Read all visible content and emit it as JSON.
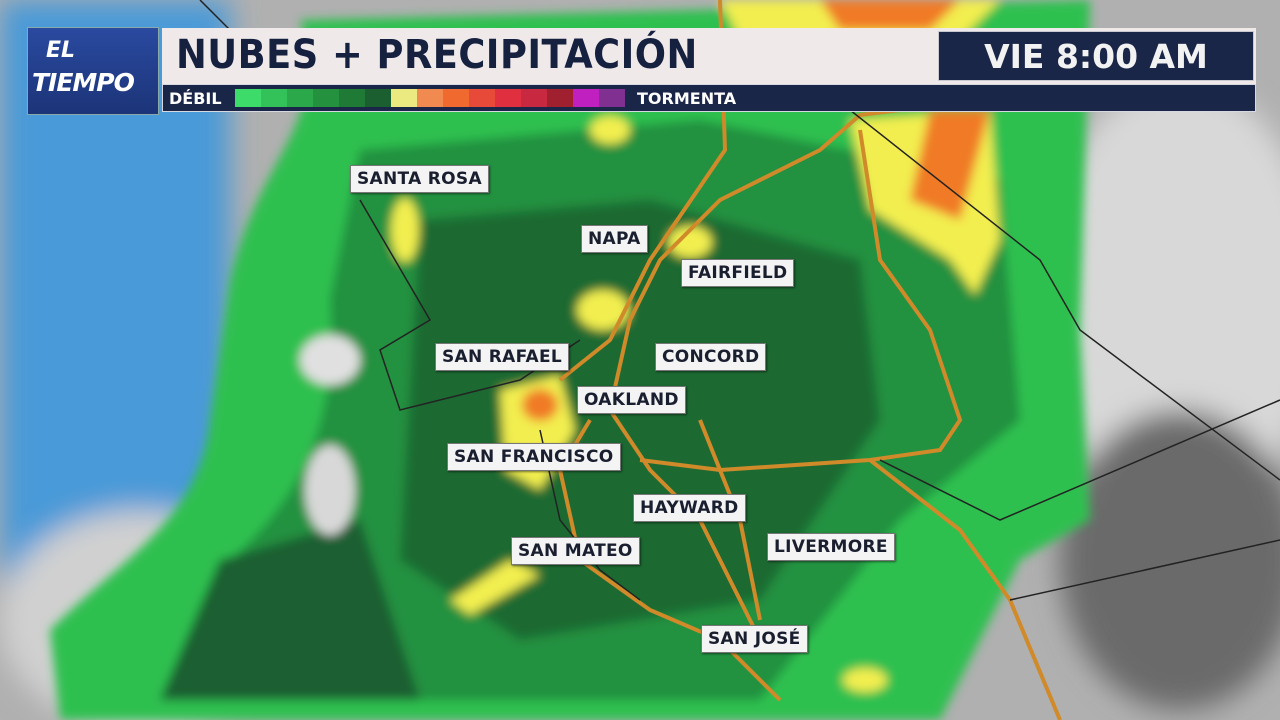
{
  "logo": {
    "line1": "EL",
    "line2": "TIEMPO"
  },
  "header": {
    "title": "NUBES + PRECIPITACIÓN",
    "time": "VIE 8:00 AM"
  },
  "legend": {
    "low_label": "DÉBIL",
    "high_label": "TORMENTA",
    "colors": [
      "#3ddc6a",
      "#33c25a",
      "#2aa84a",
      "#24913f",
      "#1e7a35",
      "#1b5e30",
      "#eaea80",
      "#f08a50",
      "#f06a30",
      "#e84a3a",
      "#e03040",
      "#c82840",
      "#a02030",
      "#c020c0",
      "#803090"
    ]
  },
  "cities": [
    {
      "name": "SANTA ROSA"
    },
    {
      "name": "NAPA"
    },
    {
      "name": "FAIRFIELD"
    },
    {
      "name": "SAN RAFAEL"
    },
    {
      "name": "CONCORD"
    },
    {
      "name": "OAKLAND"
    },
    {
      "name": "SAN FRANCISCO"
    },
    {
      "name": "HAYWARD"
    },
    {
      "name": "SAN MATEO"
    },
    {
      "name": "LIVERMORE"
    },
    {
      "name": "SAN JOSÉ"
    }
  ],
  "colors": {
    "ocean": "#4a9ad8",
    "land": "#a8a8a8",
    "rain_light": "#2fc04f",
    "rain_dark": "#1b5e30",
    "highway": "#d08a2a"
  }
}
